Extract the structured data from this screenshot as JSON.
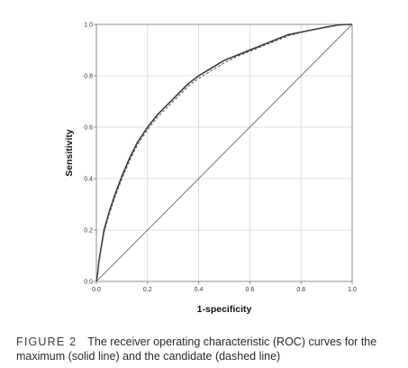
{
  "figure": {
    "label": "FIGURE 2",
    "caption": "The receiver operating characteristic (ROC) curves for the maximum (solid line) and the candidate (dashed line)"
  },
  "chart_data": {
    "type": "line",
    "title": "",
    "xlabel": "1-specificity",
    "ylabel": "Sensitivity",
    "xlim": [
      0,
      1
    ],
    "ylim": [
      0,
      1
    ],
    "x_ticks": [
      "0.0",
      "0.2",
      "0.4",
      "0.6",
      "0.8",
      "1.0"
    ],
    "y_ticks": [
      "0.0",
      "0.2",
      "0.4",
      "0.6",
      "0.8",
      "1.0"
    ],
    "grid": true,
    "legend": "none",
    "series": [
      {
        "style": "solid",
        "color": "#333333",
        "x": [
          0.0,
          0.005,
          0.01,
          0.02,
          0.03,
          0.05,
          0.07,
          0.1,
          0.13,
          0.16,
          0.2,
          0.24,
          0.28,
          0.32,
          0.36,
          0.4,
          0.45,
          0.5,
          0.55,
          0.6,
          0.65,
          0.7,
          0.75,
          0.8,
          0.85,
          0.9,
          0.95,
          1.0
        ],
        "y": [
          0.0,
          0.03,
          0.08,
          0.14,
          0.2,
          0.27,
          0.33,
          0.41,
          0.48,
          0.54,
          0.6,
          0.65,
          0.69,
          0.73,
          0.77,
          0.8,
          0.83,
          0.86,
          0.88,
          0.9,
          0.92,
          0.94,
          0.96,
          0.97,
          0.98,
          0.99,
          0.998,
          1.0
        ]
      },
      {
        "style": "dashed",
        "color": "#555555",
        "x": [
          0.0,
          0.005,
          0.01,
          0.02,
          0.03,
          0.05,
          0.07,
          0.1,
          0.13,
          0.16,
          0.2,
          0.24,
          0.28,
          0.32,
          0.36,
          0.4,
          0.45,
          0.5,
          0.55,
          0.6,
          0.65,
          0.7,
          0.75,
          0.8,
          0.85,
          0.9,
          0.95,
          1.0
        ],
        "y": [
          0.0,
          0.025,
          0.07,
          0.13,
          0.19,
          0.26,
          0.32,
          0.4,
          0.47,
          0.53,
          0.59,
          0.64,
          0.68,
          0.72,
          0.76,
          0.79,
          0.82,
          0.85,
          0.875,
          0.895,
          0.915,
          0.935,
          0.955,
          0.968,
          0.978,
          0.988,
          0.997,
          1.0
        ]
      },
      {
        "style": "reference",
        "color": "#555555",
        "x": [
          0,
          1
        ],
        "y": [
          0,
          1
        ]
      }
    ]
  }
}
